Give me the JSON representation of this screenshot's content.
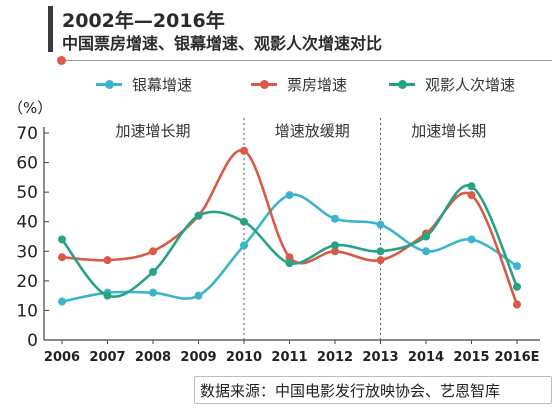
{
  "header": {
    "title_line1": "2002年—2016年",
    "title_line2": "中国票房增速、银幕增速、观影人次增速对比"
  },
  "colors": {
    "screens": "#3cb4cc",
    "box_office": "#d95a47",
    "admissions": "#27a285",
    "accent_dot": "#e0584a"
  },
  "chart_data": {
    "type": "line",
    "ylabel": "（%）",
    "ylim": [
      0,
      70
    ],
    "yticks": [
      0,
      10,
      20,
      30,
      40,
      50,
      60,
      70
    ],
    "categories": [
      "2006",
      "2007",
      "2008",
      "2009",
      "2010",
      "2011",
      "2012",
      "2013",
      "2014",
      "2015",
      "2016E"
    ],
    "series": [
      {
        "name": "银幕增速",
        "color": "#3cb4cc",
        "values": [
          13,
          16,
          16,
          15,
          32,
          49,
          41,
          39,
          30,
          34,
          25
        ]
      },
      {
        "name": "票房增速",
        "color": "#d95a47",
        "values": [
          28,
          27,
          30,
          42,
          64,
          28,
          30,
          27,
          36,
          49,
          12
        ]
      },
      {
        "name": "观影人次增速",
        "color": "#27a285",
        "values": [
          34,
          15,
          23,
          42,
          40,
          26,
          32,
          30,
          35,
          52,
          18
        ]
      }
    ],
    "phases": [
      {
        "label": "加速增长期",
        "from": "2006",
        "to": "2010"
      },
      {
        "label": "增速放缓期",
        "from": "2010",
        "to": "2013"
      },
      {
        "label": "加速增长期",
        "from": "2013",
        "to": "2016E"
      }
    ],
    "dividers": [
      "2010",
      "2013"
    ],
    "legend_position": "top",
    "grid": false
  },
  "footer": {
    "source": "数据来源：中国电影发行放映协会、艺恩智库"
  }
}
